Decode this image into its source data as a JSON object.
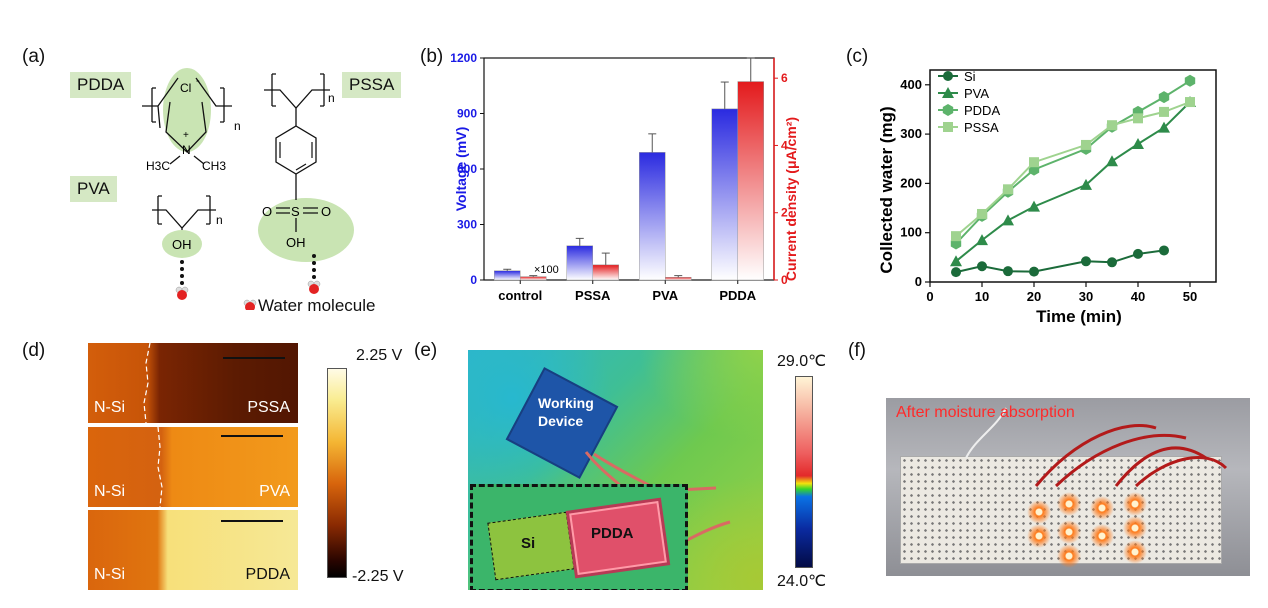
{
  "panels": {
    "a": {
      "label": "(a)",
      "polymers": [
        "PDDA",
        "PSSA",
        "PVA"
      ],
      "chem": {
        "cl": "Cl",
        "minus": "-",
        "plus": "+",
        "n": "n",
        "nitrogen": "N",
        "h3c": "H3C",
        "ch3": "CH3",
        "oh": "OH",
        "s": "S",
        "o": "O"
      },
      "legend": "Water molecule"
    },
    "b": {
      "label": "(b)",
      "annotation": "×100",
      "ylabel_left": "Voltage (mV)",
      "ylabel_right": "Current density (μA/cm²)"
    },
    "c": {
      "label": "(c)",
      "xlabel": "Time (min)",
      "ylabel": "Collected water (mg)"
    },
    "d": {
      "label": "(d)",
      "images": [
        {
          "left": "N-Si",
          "right": "PSSA"
        },
        {
          "left": "N-Si",
          "right": "PVA"
        },
        {
          "left": "N-Si",
          "right": "PDDA"
        }
      ],
      "colorbar_max": "2.25 V",
      "colorbar_min": "-2.25 V"
    },
    "e": {
      "label": "(e)",
      "device_label": "Working Device",
      "inset_left": "Si",
      "inset_right": "PDDA",
      "colorbar_max": "29.0℃",
      "colorbar_min": "24.0℃"
    },
    "f": {
      "label": "(f)",
      "photo_caption": "After moisture absorption"
    }
  },
  "chart_data": [
    {
      "type": "bar",
      "categories": [
        "control",
        "PSSA",
        "PVA",
        "PDDA"
      ],
      "series": [
        {
          "axis": "left",
          "values": [
            50,
            185,
            690,
            925
          ],
          "errors": [
            8,
            40,
            100,
            145
          ],
          "color": "#2222dd"
        },
        {
          "axis": "right",
          "values": [
            0.1,
            0.45,
            0.08,
            5.9
          ],
          "errors": [
            0.03,
            0.35,
            0.05,
            0.7
          ],
          "color": "#e31a1c"
        }
      ],
      "ylim_left": [
        0,
        1200
      ],
      "yticks_left": [
        0,
        300,
        600,
        900,
        1200
      ],
      "ylim_right": [
        0,
        6.6
      ],
      "yticks_right": [
        0,
        2,
        4,
        6
      ]
    },
    {
      "type": "line",
      "xlim": [
        0,
        55
      ],
      "xticks": [
        0,
        10,
        20,
        30,
        40,
        50
      ],
      "ylim": [
        0,
        430
      ],
      "yticks": [
        0,
        100,
        200,
        300,
        400
      ],
      "series": [
        {
          "name": "Si",
          "marker": "circle",
          "color": "#1b6b3a",
          "x": [
            5,
            10,
            15,
            20,
            30,
            35,
            40,
            45
          ],
          "y": [
            20,
            32,
            22,
            21,
            42,
            40,
            57,
            64
          ]
        },
        {
          "name": "PVA",
          "marker": "triangle",
          "color": "#2e8b4a",
          "x": [
            5,
            10,
            15,
            20,
            30,
            35,
            40,
            45,
            50
          ],
          "y": [
            42,
            85,
            125,
            153,
            197,
            245,
            280,
            313,
            365
          ]
        },
        {
          "name": "PDDA",
          "marker": "hexagon",
          "color": "#5db36b",
          "x": [
            5,
            10,
            15,
            20,
            30,
            35,
            40,
            45,
            50
          ],
          "y": [
            78,
            134,
            183,
            228,
            270,
            315,
            345,
            375,
            408
          ]
        },
        {
          "name": "PSSA",
          "marker": "square",
          "color": "#9fd38f",
          "x": [
            5,
            10,
            15,
            20,
            30,
            35,
            40,
            45,
            50
          ],
          "y": [
            93,
            138,
            188,
            243,
            278,
            318,
            332,
            345,
            365
          ]
        }
      ]
    }
  ]
}
